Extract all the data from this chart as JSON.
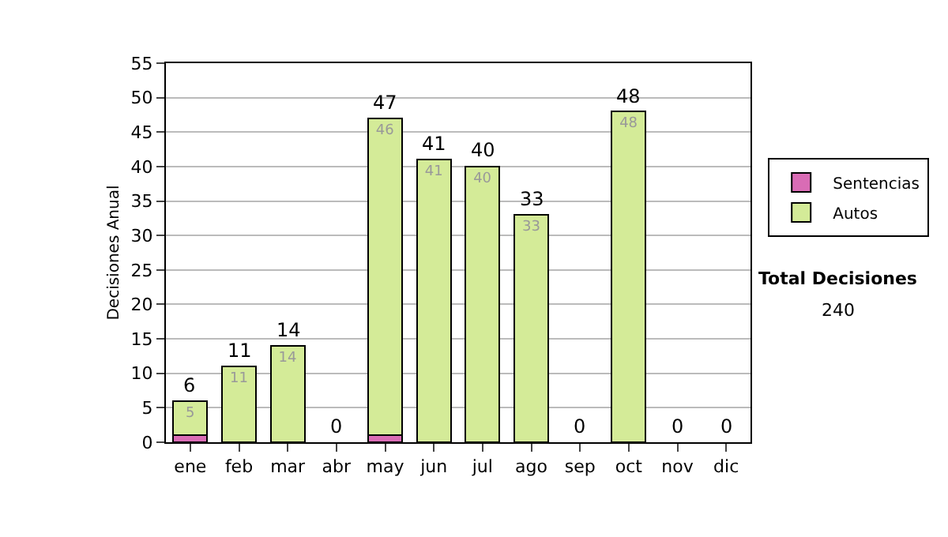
{
  "chart_data": {
    "type": "bar",
    "stacked": true,
    "ylabel": "Decisiones Anual",
    "categories": [
      "ene",
      "feb",
      "mar",
      "abr",
      "may",
      "jun",
      "jul",
      "ago",
      "sep",
      "oct",
      "nov",
      "dic"
    ],
    "series": [
      {
        "name": "Sentencias",
        "color": "#d96cb5",
        "values": [
          1,
          0,
          0,
          0,
          1,
          0,
          0,
          0,
          0,
          0,
          0,
          0
        ]
      },
      {
        "name": "Autos",
        "color": "#d4eb98",
        "values": [
          5,
          11,
          14,
          0,
          46,
          41,
          40,
          33,
          0,
          48,
          0,
          0
        ],
        "value_labels": [
          "5",
          "11",
          "14",
          null,
          "46",
          "41",
          "40",
          "33",
          null,
          "48",
          null,
          null
        ]
      }
    ],
    "totals": [
      "6",
      "11",
      "14",
      "0",
      "47",
      "41",
      "40",
      "33",
      "0",
      "48",
      "0",
      "0"
    ],
    "ylim": [
      0,
      55
    ],
    "yticks": [
      0,
      5,
      10,
      15,
      20,
      25,
      30,
      35,
      40,
      45,
      50,
      55
    ],
    "grid": "y",
    "legend": "right",
    "annotations": [
      "Total Decisiones",
      "240"
    ]
  }
}
